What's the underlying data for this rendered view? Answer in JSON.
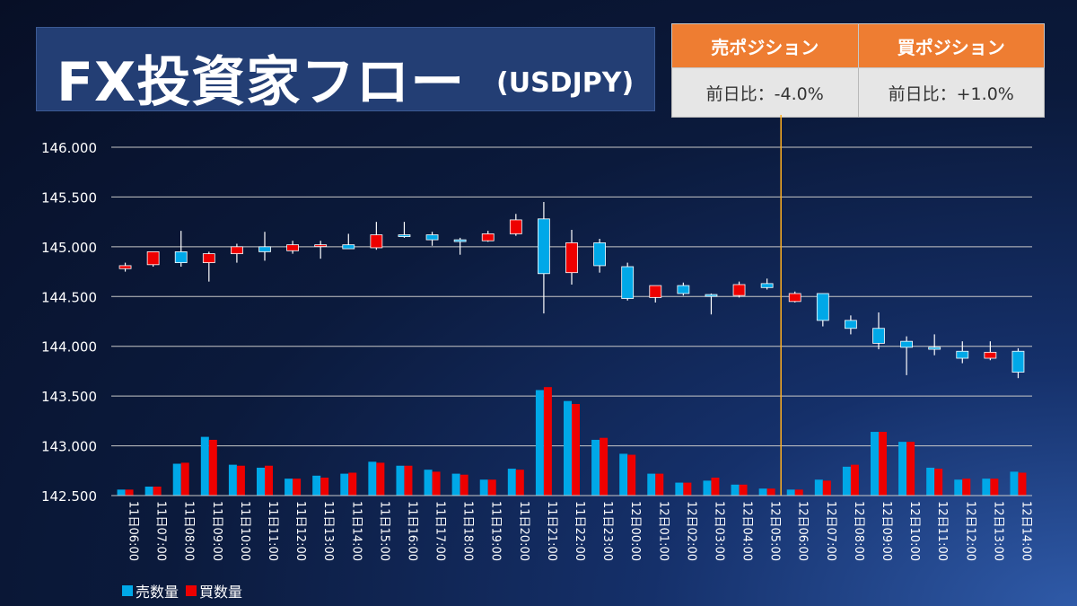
{
  "header": {
    "title": "FX投資家フロー",
    "subtitle": "(USDJPY)"
  },
  "positions": {
    "sell_header": "売ポジション",
    "buy_header": "買ポジション",
    "sell_value": "前日比：-4.0%",
    "buy_value": "前日比：+1.0%"
  },
  "colors": {
    "sell": "#00a8e8",
    "buy": "#ee0000",
    "grid": "#c8c8c8",
    "divider": "#ffb020",
    "header_bg": "#ee7d32"
  },
  "chart_data": {
    "type": "candlestick+bar",
    "title": "",
    "ylim": [
      142.5,
      146.0
    ],
    "yticks": [
      "146.000",
      "145.500",
      "145.000",
      "144.500",
      "144.000",
      "143.500",
      "143.000",
      "142.500"
    ],
    "ytick_values": [
      146.0,
      145.5,
      145.0,
      144.5,
      144.0,
      143.5,
      143.0,
      142.5
    ],
    "grid": true,
    "legend_position": "bottom-left",
    "divider_after": "12日05:00",
    "categories": [
      "11日06:00",
      "11日07:00",
      "11日08:00",
      "11日09:00",
      "11日10:00",
      "11日11:00",
      "11日12:00",
      "11日13:00",
      "11日14:00",
      "11日15:00",
      "11日16:00",
      "11日17:00",
      "11日18:00",
      "11日19:00",
      "11日20:00",
      "11日21:00",
      "11日22:00",
      "11日23:00",
      "12日00:00",
      "12日01:00",
      "12日02:00",
      "12日03:00",
      "12日04:00",
      "12日05:00",
      "12日06:00",
      "12日07:00",
      "12日08:00",
      "12日09:00",
      "12日10:00",
      "12日11:00",
      "12日12:00",
      "12日13:00",
      "12日14:00"
    ],
    "candles": [
      {
        "o": 144.78,
        "h": 144.84,
        "l": 144.75,
        "c": 144.81
      },
      {
        "o": 144.82,
        "h": 144.95,
        "l": 144.8,
        "c": 144.95
      },
      {
        "o": 144.95,
        "h": 145.16,
        "l": 144.8,
        "c": 144.84
      },
      {
        "o": 144.84,
        "h": 144.95,
        "l": 144.65,
        "c": 144.93
      },
      {
        "o": 144.93,
        "h": 145.03,
        "l": 144.84,
        "c": 145.0
      },
      {
        "o": 145.0,
        "h": 145.15,
        "l": 144.86,
        "c": 144.95
      },
      {
        "o": 144.96,
        "h": 145.06,
        "l": 144.93,
        "c": 145.02
      },
      {
        "o": 145.01,
        "h": 145.06,
        "l": 144.88,
        "c": 145.02
      },
      {
        "o": 145.02,
        "h": 145.13,
        "l": 144.98,
        "c": 144.98
      },
      {
        "o": 144.99,
        "h": 145.25,
        "l": 144.97,
        "c": 145.12
      },
      {
        "o": 145.12,
        "h": 145.25,
        "l": 145.09,
        "c": 145.11
      },
      {
        "o": 145.12,
        "h": 145.15,
        "l": 145.01,
        "c": 145.07
      },
      {
        "o": 145.07,
        "h": 145.09,
        "l": 144.92,
        "c": 145.06
      },
      {
        "o": 145.06,
        "h": 145.16,
        "l": 145.05,
        "c": 145.13
      },
      {
        "o": 145.13,
        "h": 145.33,
        "l": 145.11,
        "c": 145.27
      },
      {
        "o": 145.28,
        "h": 145.45,
        "l": 144.33,
        "c": 144.73
      },
      {
        "o": 144.74,
        "h": 145.17,
        "l": 144.62,
        "c": 145.04
      },
      {
        "o": 145.04,
        "h": 145.08,
        "l": 144.74,
        "c": 144.81
      },
      {
        "o": 144.8,
        "h": 144.84,
        "l": 144.46,
        "c": 144.48
      },
      {
        "o": 144.49,
        "h": 144.61,
        "l": 144.44,
        "c": 144.61
      },
      {
        "o": 144.61,
        "h": 144.64,
        "l": 144.51,
        "c": 144.53
      },
      {
        "o": 144.52,
        "h": 144.53,
        "l": 144.32,
        "c": 144.51
      },
      {
        "o": 144.51,
        "h": 144.65,
        "l": 144.49,
        "c": 144.62
      },
      {
        "o": 144.63,
        "h": 144.68,
        "l": 144.57,
        "c": 144.59
      },
      {
        "o": 144.45,
        "h": 144.55,
        "l": 144.44,
        "c": 144.53
      },
      {
        "o": 144.53,
        "h": 144.53,
        "l": 144.2,
        "c": 144.26
      },
      {
        "o": 144.26,
        "h": 144.31,
        "l": 144.12,
        "c": 144.18
      },
      {
        "o": 144.18,
        "h": 144.34,
        "l": 143.97,
        "c": 144.03
      },
      {
        "o": 144.05,
        "h": 144.1,
        "l": 143.71,
        "c": 143.99
      },
      {
        "o": 143.99,
        "h": 144.12,
        "l": 143.91,
        "c": 143.97
      },
      {
        "o": 143.95,
        "h": 144.05,
        "l": 143.83,
        "c": 143.88
      },
      {
        "o": 143.88,
        "h": 144.05,
        "l": 143.86,
        "c": 143.94
      },
      {
        "o": 143.95,
        "h": 143.98,
        "l": 143.68,
        "c": 143.74
      }
    ],
    "series": [
      {
        "name": "売数量",
        "values": [
          142.56,
          142.59,
          142.82,
          143.09,
          142.81,
          142.78,
          142.67,
          142.7,
          142.72,
          142.84,
          142.8,
          142.76,
          142.72,
          142.66,
          142.77,
          143.56,
          143.45,
          143.06,
          142.92,
          142.72,
          142.63,
          142.65,
          142.61,
          142.57,
          142.56,
          142.66,
          142.79,
          143.14,
          143.04,
          142.78,
          142.66,
          142.67,
          142.74
        ]
      },
      {
        "name": "買数量",
        "values": [
          142.56,
          142.59,
          142.83,
          143.06,
          142.8,
          142.8,
          142.67,
          142.68,
          142.73,
          142.83,
          142.8,
          142.74,
          142.71,
          142.66,
          142.76,
          143.59,
          143.42,
          143.08,
          142.91,
          142.72,
          142.63,
          142.68,
          142.61,
          142.57,
          142.56,
          142.65,
          142.81,
          143.14,
          143.04,
          142.77,
          142.67,
          142.67,
          142.73
        ]
      }
    ]
  }
}
